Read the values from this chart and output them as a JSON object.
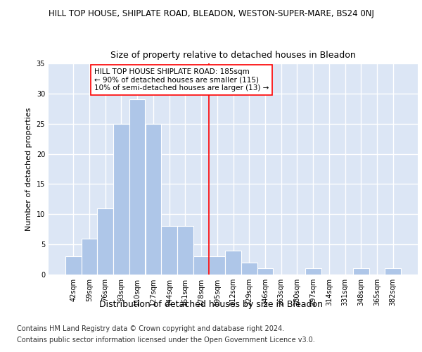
{
  "title": "HILL TOP HOUSE, SHIPLATE ROAD, BLEADON, WESTON-SUPER-MARE, BS24 0NJ",
  "subtitle": "Size of property relative to detached houses in Bleadon",
  "xlabel": "Distribution of detached houses by size in Bleadon",
  "ylabel": "Number of detached properties",
  "bar_labels": [
    "42sqm",
    "59sqm",
    "76sqm",
    "93sqm",
    "110sqm",
    "127sqm",
    "144sqm",
    "161sqm",
    "178sqm",
    "195sqm",
    "212sqm",
    "229sqm",
    "246sqm",
    "263sqm",
    "280sqm",
    "297sqm",
    "314sqm",
    "331sqm",
    "348sqm",
    "365sqm",
    "382sqm"
  ],
  "bar_values": [
    3,
    6,
    11,
    25,
    29,
    25,
    8,
    8,
    3,
    3,
    4,
    2,
    1,
    0,
    0,
    1,
    0,
    0,
    1,
    0,
    1
  ],
  "bar_color": "#aec6e8",
  "vline_color": "red",
  "vline_index": 8,
  "annotation_text": "HILL TOP HOUSE SHIPLATE ROAD: 185sqm\n← 90% of detached houses are smaller (115)\n10% of semi-detached houses are larger (13) →",
  "annotation_box_color": "white",
  "annotation_border_color": "red",
  "ylim": [
    0,
    35
  ],
  "yticks": [
    0,
    5,
    10,
    15,
    20,
    25,
    30,
    35
  ],
  "background_color": "#dce6f5",
  "grid_color": "white",
  "footer1": "Contains HM Land Registry data © Crown copyright and database right 2024.",
  "footer2": "Contains public sector information licensed under the Open Government Licence v3.0.",
  "title_fontsize": 8.5,
  "subtitle_fontsize": 9,
  "xlabel_fontsize": 9,
  "ylabel_fontsize": 8,
  "tick_fontsize": 7,
  "footer_fontsize": 7,
  "ann_fontsize": 7.5
}
